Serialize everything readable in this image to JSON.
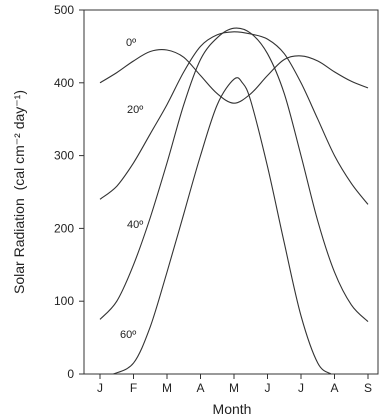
{
  "chart_data": {
    "type": "line",
    "title": "",
    "xlabel": "Month",
    "ylabel": "Solar Radiation",
    "ylabel_unit": "(cal cm⁻² day⁻¹)",
    "categories": [
      "J",
      "F",
      "M",
      "A",
      "M",
      "J",
      "J",
      "A",
      "S"
    ],
    "ylim": [
      0,
      500
    ],
    "yticks": [
      0,
      100,
      200,
      300,
      400,
      500
    ],
    "grid": false,
    "legend": "none",
    "line_color": "#333333",
    "series": [
      {
        "name": "0º",
        "x": [
          0,
          0.5,
          1,
          1.5,
          2,
          2.5,
          3,
          3.5,
          4,
          4.5,
          5,
          5.5,
          6,
          6.5,
          7,
          7.5,
          8
        ],
        "values": [
          400,
          414,
          430,
          443,
          445,
          435,
          410,
          385,
          372,
          385,
          410,
          432,
          437,
          430,
          415,
          402,
          393
        ]
      },
      {
        "name": "20º",
        "x": [
          0,
          0.5,
          1,
          1.5,
          2,
          2.5,
          3,
          3.5,
          4,
          4.5,
          5,
          5.5,
          6,
          6.5,
          7,
          7.5,
          8
        ],
        "values": [
          240,
          258,
          290,
          330,
          370,
          415,
          450,
          466,
          470,
          467,
          460,
          440,
          400,
          350,
          300,
          262,
          233
        ]
      },
      {
        "name": "40º",
        "x": [
          0,
          0.5,
          1,
          1.5,
          2,
          2.5,
          3,
          3.5,
          4,
          4.5,
          5,
          5.5,
          6,
          6.5,
          7,
          7.5,
          8
        ],
        "values": [
          75,
          100,
          150,
          215,
          290,
          370,
          432,
          462,
          475,
          468,
          440,
          385,
          300,
          210,
          140,
          95,
          72
        ]
      },
      {
        "name": "60º",
        "x": [
          0.4,
          1,
          1.5,
          2,
          2.5,
          3,
          3.5,
          4,
          4.25,
          4.5,
          5,
          5.5,
          6,
          6.5,
          6.9
        ],
        "values": [
          0,
          15,
          65,
          140,
          220,
          300,
          370,
          405,
          400,
          375,
          285,
          180,
          80,
          15,
          0
        ]
      }
    ]
  }
}
